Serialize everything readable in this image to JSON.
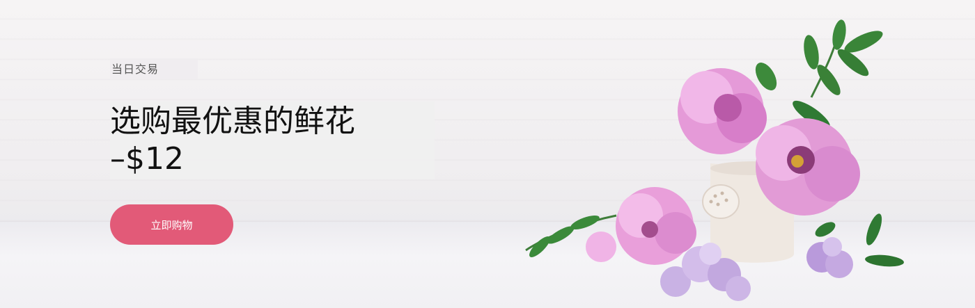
{
  "hero": {
    "eyebrow": "当日交易",
    "headline_line1": "选购最优惠的鲜花",
    "headline_line2": "–$12",
    "cta_label": "立即购物",
    "accent_color": "#e25a78"
  }
}
